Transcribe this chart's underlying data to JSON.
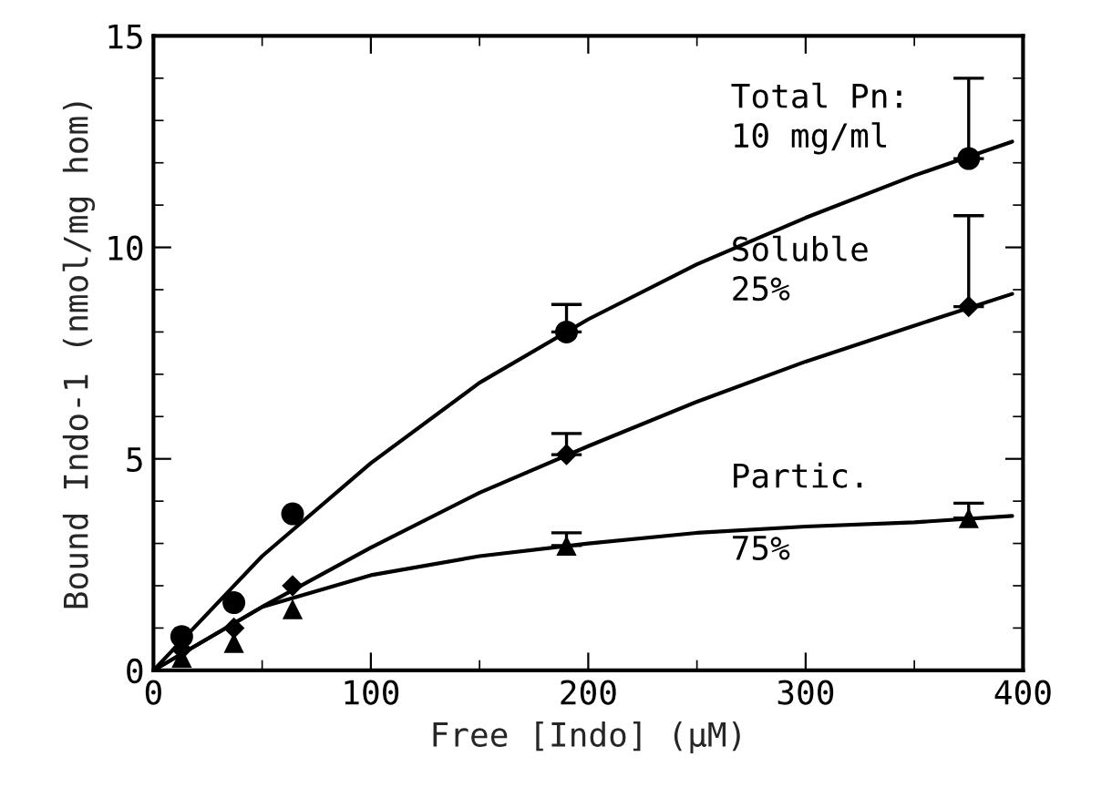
{
  "chart_data": {
    "type": "scatter",
    "xlabel": "Free [Indo] (μM)",
    "ylabel": "Bound Indo-1 (nmol/mg hom)",
    "xlim": [
      0,
      400
    ],
    "xticks": [
      0,
      100,
      200,
      300,
      400
    ],
    "ylim": [
      0,
      15
    ],
    "yticks": [
      0,
      5,
      10,
      15
    ],
    "grid": false,
    "series": [
      {
        "name": "Total Pn:\n10 mg/ml",
        "marker": "circle",
        "color": "#000000",
        "x": [
          13,
          37,
          64,
          190,
          375
        ],
        "values": [
          0.8,
          1.6,
          3.7,
          8.0,
          12.1
        ],
        "errors": [
          null,
          null,
          null,
          [
            8.0,
            8.65
          ],
          [
            12.1,
            14.0
          ]
        ]
      },
      {
        "name": "Soluble\n25%",
        "marker": "diamond",
        "color": "#000000",
        "x": [
          13,
          37,
          64,
          190,
          375
        ],
        "values": [
          0.5,
          1.0,
          2.0,
          5.1,
          8.6
        ],
        "errors": [
          null,
          null,
          null,
          [
            5.1,
            5.6
          ],
          [
            8.6,
            10.75
          ]
        ]
      },
      {
        "name": "Partic.\n75%",
        "marker": "triangle",
        "color": "#000000",
        "x": [
          13,
          37,
          64,
          190,
          375
        ],
        "values": [
          0.3,
          0.65,
          1.45,
          2.95,
          3.6
        ],
        "errors": [
          null,
          null,
          null,
          [
            2.95,
            3.25
          ],
          [
            3.6,
            3.95
          ]
        ]
      },
      {
        "type": "line",
        "color": "#000000",
        "x": [
          0,
          50,
          100,
          150,
          200,
          250,
          300,
          350,
          395
        ],
        "values": [
          0,
          2.7,
          4.9,
          6.8,
          8.3,
          9.6,
          10.7,
          11.7,
          12.5
        ]
      },
      {
        "type": "line",
        "color": "#000000",
        "x": [
          0,
          50,
          100,
          150,
          200,
          250,
          300,
          350,
          395
        ],
        "values": [
          0,
          1.5,
          2.9,
          4.2,
          5.3,
          6.35,
          7.3,
          8.15,
          8.9
        ]
      },
      {
        "type": "line",
        "color": "#000000",
        "x": [
          0,
          50,
          100,
          150,
          200,
          250,
          300,
          350,
          395
        ],
        "values": [
          0,
          1.5,
          2.25,
          2.7,
          3.0,
          3.25,
          3.4,
          3.5,
          3.65
        ]
      }
    ]
  }
}
